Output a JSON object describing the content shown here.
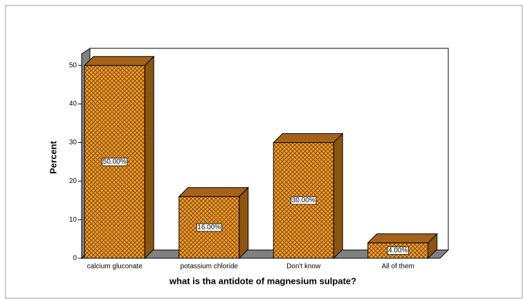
{
  "chart_data": {
    "type": "bar3d",
    "categories": [
      "calcium gluconate",
      "potassium chloride",
      "Don't  know",
      "All of them"
    ],
    "values": [
      50,
      16,
      30,
      4
    ],
    "value_labels": [
      "50.00%",
      "16.00%",
      "30.00%",
      "4.00%"
    ],
    "color": "#f0a030",
    "x_label": "what is tha antidote of magnesium sulpate?",
    "y_label": "Percent",
    "ylim": [
      0,
      53
    ],
    "yticks": [
      0,
      10,
      20,
      30,
      40,
      50
    ]
  }
}
